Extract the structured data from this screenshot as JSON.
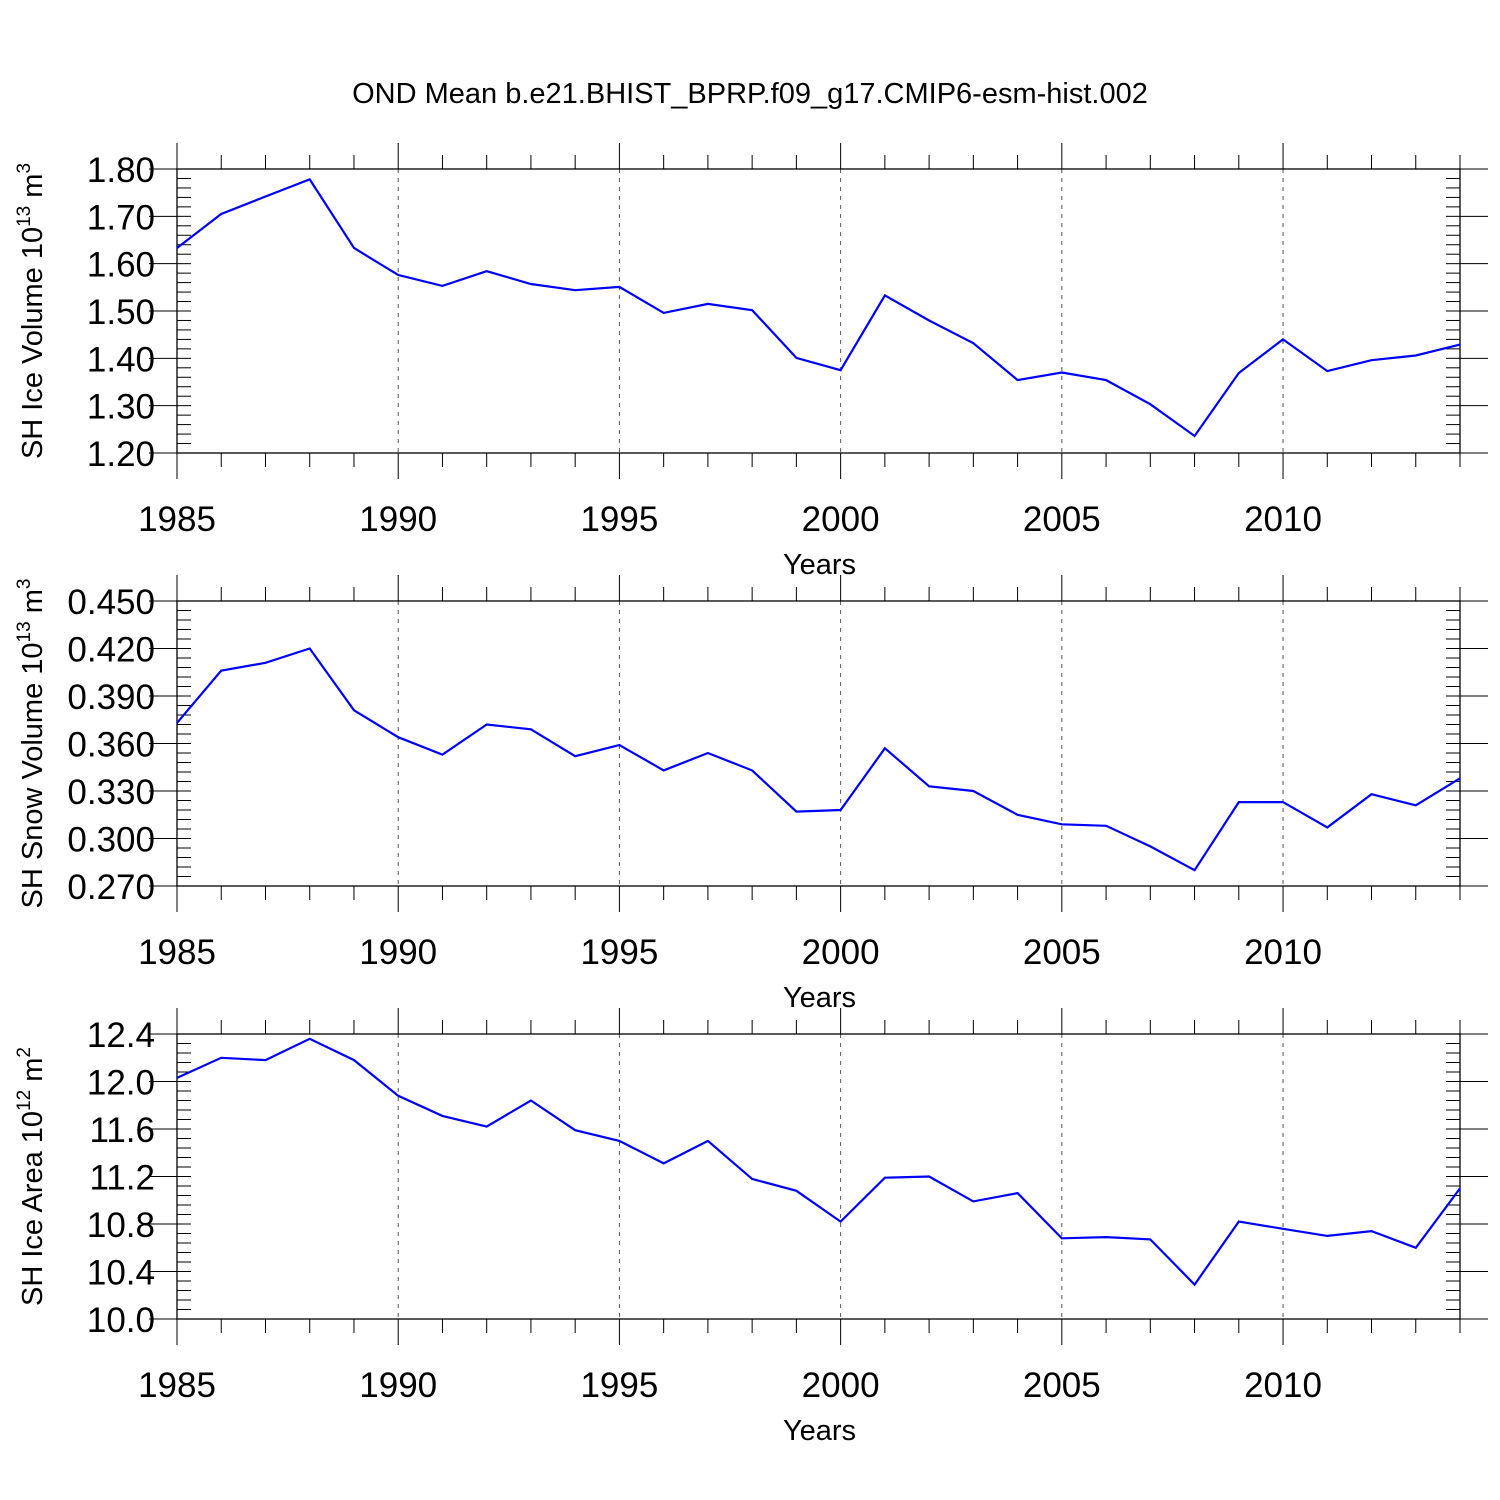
{
  "title": "OND Mean b.e21.BHIST_BPRP.f09_g17.CMIP6-esm-hist.002",
  "colors": {
    "series": "#0000ff",
    "axis": "#000000",
    "grid": "#555555"
  },
  "chart_data": [
    {
      "type": "line",
      "ylabel": "SH Ice Volume 10",
      "ylabel_exp": "13",
      "ylabel_unit": " m",
      "ylabel_unit_exp": "3",
      "xlabel": "Years",
      "xlim": [
        1985,
        2014
      ],
      "ylim": [
        1.2,
        1.8
      ],
      "xticks": [
        1985,
        1990,
        1995,
        2000,
        2005,
        2010
      ],
      "xtick_labels": [
        "1985",
        "1990",
        "1995",
        "2000",
        "2005",
        "2010"
      ],
      "yticks": [
        1.2,
        1.3,
        1.4,
        1.5,
        1.6,
        1.7,
        1.8
      ],
      "ytick_labels": [
        "1.20",
        "1.30",
        "1.40",
        "1.50",
        "1.60",
        "1.70",
        "1.80"
      ],
      "y_minor_step": 0.02,
      "grid": "x dashed",
      "x": [
        1985,
        1986,
        1987,
        1988,
        1989,
        1990,
        1991,
        1992,
        1993,
        1994,
        1995,
        1996,
        1997,
        1998,
        1999,
        2000,
        2001,
        2002,
        2003,
        2004,
        2005,
        2006,
        2007,
        2008,
        2009,
        2010,
        2011,
        2012,
        2013,
        2014
      ],
      "values": [
        1.633,
        1.705,
        1.742,
        1.778,
        1.633,
        1.576,
        1.553,
        1.584,
        1.557,
        1.544,
        1.551,
        1.496,
        1.515,
        1.502,
        1.401,
        1.375,
        1.533,
        1.48,
        1.432,
        1.354,
        1.37,
        1.354,
        1.303,
        1.236,
        1.369,
        1.44,
        1.373,
        1.396,
        1.406,
        1.429
      ]
    },
    {
      "type": "line",
      "ylabel": "SH Snow Volume 10",
      "ylabel_exp": "13",
      "ylabel_unit": " m",
      "ylabel_unit_exp": "3",
      "xlabel": "Years",
      "xlim": [
        1985,
        2014
      ],
      "ylim": [
        0.27,
        0.45
      ],
      "xticks": [
        1985,
        1990,
        1995,
        2000,
        2005,
        2010
      ],
      "xtick_labels": [
        "1985",
        "1990",
        "1995",
        "2000",
        "2005",
        "2010"
      ],
      "yticks": [
        0.27,
        0.3,
        0.33,
        0.36,
        0.39,
        0.42,
        0.45
      ],
      "ytick_labels": [
        "0.270",
        "0.300",
        "0.330",
        "0.360",
        "0.390",
        "0.420",
        "0.450"
      ],
      "y_minor_step": 0.006,
      "grid": "x dashed",
      "x": [
        1985,
        1986,
        1987,
        1988,
        1989,
        1990,
        1991,
        1992,
        1993,
        1994,
        1995,
        1996,
        1997,
        1998,
        1999,
        2000,
        2001,
        2002,
        2003,
        2004,
        2005,
        2006,
        2007,
        2008,
        2009,
        2010,
        2011,
        2012,
        2013,
        2014
      ],
      "values": [
        0.373,
        0.406,
        0.411,
        0.42,
        0.381,
        0.364,
        0.353,
        0.372,
        0.369,
        0.352,
        0.359,
        0.343,
        0.354,
        0.343,
        0.317,
        0.318,
        0.357,
        0.333,
        0.33,
        0.315,
        0.309,
        0.308,
        0.295,
        0.28,
        0.323,
        0.323,
        0.307,
        0.328,
        0.321,
        0.338
      ]
    },
    {
      "type": "line",
      "ylabel": "SH Ice Area 10",
      "ylabel_exp": "12",
      "ylabel_unit": " m",
      "ylabel_unit_exp": "2",
      "xlabel": "Years",
      "xlim": [
        1985,
        2014
      ],
      "ylim": [
        10.0,
        12.4
      ],
      "xticks": [
        1985,
        1990,
        1995,
        2000,
        2005,
        2010
      ],
      "xtick_labels": [
        "1985",
        "1990",
        "1995",
        "2000",
        "2005",
        "2010"
      ],
      "yticks": [
        10.0,
        10.4,
        10.8,
        11.2,
        11.6,
        12.0,
        12.4
      ],
      "ytick_labels": [
        "10.0",
        "10.4",
        "10.8",
        "11.2",
        "11.6",
        "12.0",
        "12.4"
      ],
      "y_minor_step": 0.08,
      "grid": "x dashed",
      "x": [
        1985,
        1986,
        1987,
        1988,
        1989,
        1990,
        1991,
        1992,
        1993,
        1994,
        1995,
        1996,
        1997,
        1998,
        1999,
        2000,
        2001,
        2002,
        2003,
        2004,
        2005,
        2006,
        2007,
        2008,
        2009,
        2010,
        2011,
        2012,
        2013,
        2014
      ],
      "values": [
        12.03,
        12.2,
        12.18,
        12.36,
        12.18,
        11.88,
        11.71,
        11.62,
        11.84,
        11.59,
        11.5,
        11.31,
        11.5,
        11.18,
        11.08,
        10.82,
        11.19,
        11.2,
        10.99,
        11.06,
        10.68,
        10.69,
        10.67,
        10.29,
        10.82,
        10.76,
        10.7,
        10.74,
        10.6,
        11.1
      ]
    }
  ]
}
